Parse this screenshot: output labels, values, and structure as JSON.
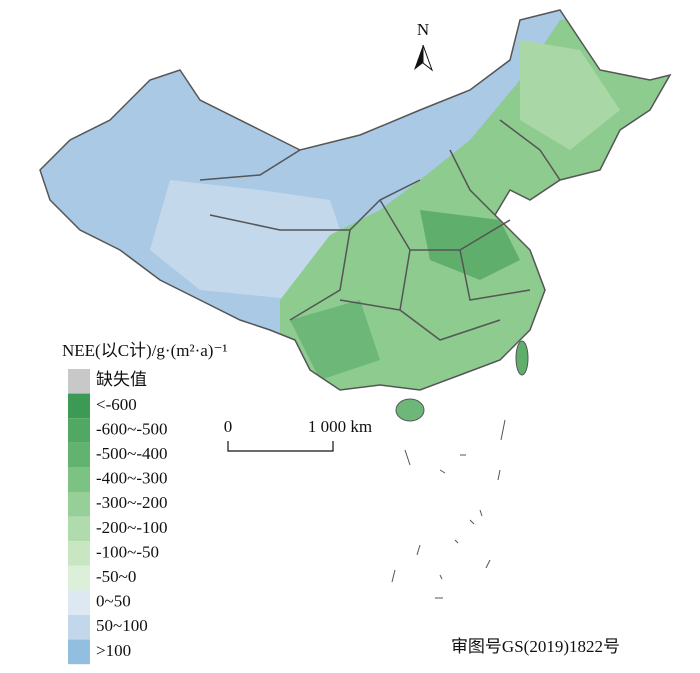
{
  "north_label": "N",
  "legend": {
    "title": "NEE(以C计)/g·(m²·a)⁻¹",
    "items": [
      {
        "label": "缺失值",
        "color": "#c8c8c8"
      },
      {
        "label": "<-600",
        "color": "#3d9a55"
      },
      {
        "label": "-600~-500",
        "color": "#50a862"
      },
      {
        "label": "-500~-400",
        "color": "#62b36f"
      },
      {
        "label": "-400~-300",
        "color": "#7bc283"
      },
      {
        "label": "-300~-200",
        "color": "#96cf97"
      },
      {
        "label": "-200~-100",
        "color": "#b0dcad"
      },
      {
        "label": "-100~-50",
        "color": "#c8e6c2"
      },
      {
        "label": "-50~0",
        "color": "#dcefd8"
      },
      {
        "label": "0~50",
        "color": "#dde8f3"
      },
      {
        "label": "50~100",
        "color": "#c2d7ea"
      },
      {
        "label": ">100",
        "color": "#92bedf"
      }
    ]
  },
  "scale_bar": {
    "start_label": "0",
    "end_label": "1 000 km"
  },
  "approval_number": "审图号GS(2019)1822号"
}
